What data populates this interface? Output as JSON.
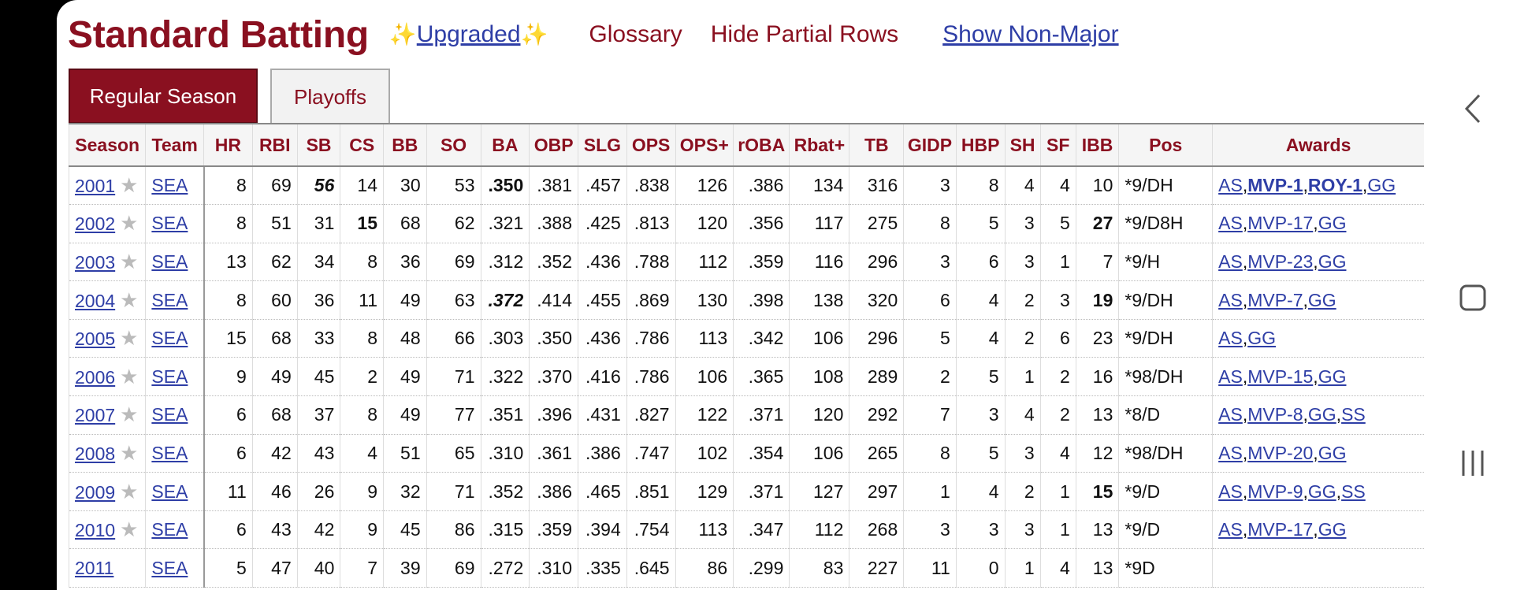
{
  "header": {
    "title": "Standard Batting",
    "sparkle_left": "✨",
    "upgraded": "Upgraded",
    "sparkle_right": "✨",
    "glossary": "Glossary",
    "hide_partial": "Hide Partial Rows",
    "show_nonmajor": "Show Non-Major"
  },
  "tabs": {
    "regular": "Regular Season",
    "playoffs": "Playoffs"
  },
  "columns": [
    "Season",
    "Team",
    "HR",
    "RBI",
    "SB",
    "CS",
    "BB",
    "SO",
    "BA",
    "OBP",
    "SLG",
    "OPS",
    "OPS+",
    "rOBA",
    "Rbat+",
    "TB",
    "GIDP",
    "HBP",
    "SH",
    "SF",
    "IBB",
    "Pos",
    "Awards"
  ],
  "rows": [
    {
      "season": "2001",
      "star": "★",
      "team": "SEA",
      "hr": "8",
      "rbi": "69",
      "sb": "56",
      "cs": "14",
      "bb": "30",
      "so": "53",
      "ba": ".350",
      "obp": ".381",
      "slg": ".457",
      "ops": ".838",
      "ops_plus": "126",
      "roba": ".386",
      "rbat": "134",
      "tb": "316",
      "gidp": "3",
      "hbp": "8",
      "sh": "4",
      "sf": "4",
      "ibb": "10",
      "pos": "*9/DH",
      "awards": [
        "AS",
        "MVP-1",
        "ROY-1",
        "GG"
      ]
    },
    {
      "season": "2002",
      "star": "★",
      "team": "SEA",
      "hr": "8",
      "rbi": "51",
      "sb": "31",
      "cs": "15",
      "bb": "68",
      "so": "62",
      "ba": ".321",
      "obp": ".388",
      "slg": ".425",
      "ops": ".813",
      "ops_plus": "120",
      "roba": ".356",
      "rbat": "117",
      "tb": "275",
      "gidp": "8",
      "hbp": "5",
      "sh": "3",
      "sf": "5",
      "ibb": "27",
      "pos": "*9/D8H",
      "awards": [
        "AS",
        "MVP-17",
        "GG"
      ]
    },
    {
      "season": "2003",
      "star": "★",
      "team": "SEA",
      "hr": "13",
      "rbi": "62",
      "sb": "34",
      "cs": "8",
      "bb": "36",
      "so": "69",
      "ba": ".312",
      "obp": ".352",
      "slg": ".436",
      "ops": ".788",
      "ops_plus": "112",
      "roba": ".359",
      "rbat": "116",
      "tb": "296",
      "gidp": "3",
      "hbp": "6",
      "sh": "3",
      "sf": "1",
      "ibb": "7",
      "pos": "*9/H",
      "awards": [
        "AS",
        "MVP-23",
        "GG"
      ]
    },
    {
      "season": "2004",
      "star": "★",
      "team": "SEA",
      "hr": "8",
      "rbi": "60",
      "sb": "36",
      "cs": "11",
      "bb": "49",
      "so": "63",
      "ba": ".372",
      "obp": ".414",
      "slg": ".455",
      "ops": ".869",
      "ops_plus": "130",
      "roba": ".398",
      "rbat": "138",
      "tb": "320",
      "gidp": "6",
      "hbp": "4",
      "sh": "2",
      "sf": "3",
      "ibb": "19",
      "pos": "*9/DH",
      "awards": [
        "AS",
        "MVP-7",
        "GG"
      ]
    },
    {
      "season": "2005",
      "star": "★",
      "team": "SEA",
      "hr": "15",
      "rbi": "68",
      "sb": "33",
      "cs": "8",
      "bb": "48",
      "so": "66",
      "ba": ".303",
      "obp": ".350",
      "slg": ".436",
      "ops": ".786",
      "ops_plus": "113",
      "roba": ".342",
      "rbat": "106",
      "tb": "296",
      "gidp": "5",
      "hbp": "4",
      "sh": "2",
      "sf": "6",
      "ibb": "23",
      "pos": "*9/DH",
      "awards": [
        "AS",
        "GG"
      ]
    },
    {
      "season": "2006",
      "star": "★",
      "team": "SEA",
      "hr": "9",
      "rbi": "49",
      "sb": "45",
      "cs": "2",
      "bb": "49",
      "so": "71",
      "ba": ".322",
      "obp": ".370",
      "slg": ".416",
      "ops": ".786",
      "ops_plus": "106",
      "roba": ".365",
      "rbat": "108",
      "tb": "289",
      "gidp": "2",
      "hbp": "5",
      "sh": "1",
      "sf": "2",
      "ibb": "16",
      "pos": "*98/DH",
      "awards": [
        "AS",
        "MVP-15",
        "GG"
      ]
    },
    {
      "season": "2007",
      "star": "★",
      "team": "SEA",
      "hr": "6",
      "rbi": "68",
      "sb": "37",
      "cs": "8",
      "bb": "49",
      "so": "77",
      "ba": ".351",
      "obp": ".396",
      "slg": ".431",
      "ops": ".827",
      "ops_plus": "122",
      "roba": ".371",
      "rbat": "120",
      "tb": "292",
      "gidp": "7",
      "hbp": "3",
      "sh": "4",
      "sf": "2",
      "ibb": "13",
      "pos": "*8/D",
      "awards": [
        "AS",
        "MVP-8",
        "GG",
        "SS"
      ]
    },
    {
      "season": "2008",
      "star": "★",
      "team": "SEA",
      "hr": "6",
      "rbi": "42",
      "sb": "43",
      "cs": "4",
      "bb": "51",
      "so": "65",
      "ba": ".310",
      "obp": ".361",
      "slg": ".386",
      "ops": ".747",
      "ops_plus": "102",
      "roba": ".354",
      "rbat": "106",
      "tb": "265",
      "gidp": "8",
      "hbp": "5",
      "sh": "3",
      "sf": "4",
      "ibb": "12",
      "pos": "*98/DH",
      "awards": [
        "AS",
        "MVP-20",
        "GG"
      ]
    },
    {
      "season": "2009",
      "star": "★",
      "team": "SEA",
      "hr": "11",
      "rbi": "46",
      "sb": "26",
      "cs": "9",
      "bb": "32",
      "so": "71",
      "ba": ".352",
      "obp": ".386",
      "slg": ".465",
      "ops": ".851",
      "ops_plus": "129",
      "roba": ".371",
      "rbat": "127",
      "tb": "297",
      "gidp": "1",
      "hbp": "4",
      "sh": "2",
      "sf": "1",
      "ibb": "15",
      "pos": "*9/D",
      "awards": [
        "AS",
        "MVP-9",
        "GG",
        "SS"
      ]
    },
    {
      "season": "2010",
      "star": "★",
      "team": "SEA",
      "hr": "6",
      "rbi": "43",
      "sb": "42",
      "cs": "9",
      "bb": "45",
      "so": "86",
      "ba": ".315",
      "obp": ".359",
      "slg": ".394",
      "ops": ".754",
      "ops_plus": "113",
      "roba": ".347",
      "rbat": "112",
      "tb": "268",
      "gidp": "3",
      "hbp": "3",
      "sh": "3",
      "sf": "1",
      "ibb": "13",
      "pos": "*9/D",
      "awards": [
        "AS",
        "MVP-17",
        "GG"
      ]
    },
    {
      "season": "2011",
      "star": "",
      "team": "SEA",
      "hr": "5",
      "rbi": "47",
      "sb": "40",
      "cs": "7",
      "bb": "39",
      "so": "69",
      "ba": ".272",
      "obp": ".310",
      "slg": ".335",
      "ops": ".645",
      "ops_plus": "86",
      "roba": ".299",
      "rbat": "83",
      "tb": "227",
      "gidp": "11",
      "hbp": "0",
      "sh": "1",
      "sf": "4",
      "ibb": "13",
      "pos": "*9D",
      "awards": []
    }
  ],
  "bold_cells": [
    {
      "row": 0,
      "key": "sb",
      "style": "bold-italic"
    },
    {
      "row": 0,
      "key": "ba",
      "style": "bold"
    },
    {
      "row": 1,
      "key": "cs",
      "style": "bold"
    },
    {
      "row": 1,
      "key": "ibb",
      "style": "bold"
    },
    {
      "row": 3,
      "key": "ba",
      "style": "bold-italic"
    },
    {
      "row": 3,
      "key": "ibb",
      "style": "bold"
    },
    {
      "row": 8,
      "key": "ibb",
      "style": "bold"
    }
  ],
  "bold_awards": [
    "MVP-1",
    "ROY-1"
  ],
  "colors": {
    "brand": "#8a1020",
    "link": "#2e3ea6"
  },
  "icons": {
    "star": "star-icon",
    "back": "back-icon",
    "home": "home-icon",
    "recents": "recents-icon"
  }
}
